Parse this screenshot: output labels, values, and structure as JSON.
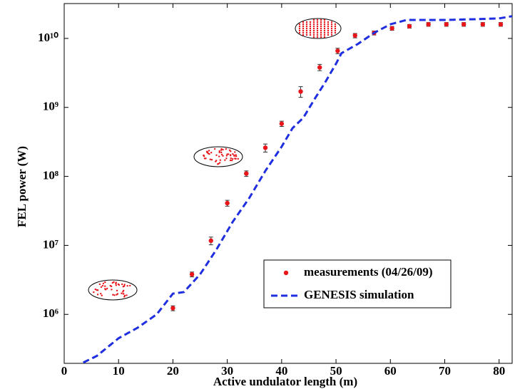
{
  "chart_data": {
    "type": "scatter",
    "xlabel": "Active undulator length (m)",
    "ylabel": "FEL power (W)",
    "xlim": [
      0,
      82.4
    ],
    "ylim": [
      195000,
      32000000000
    ],
    "y_scale": "log",
    "xticks": [
      0,
      10,
      20,
      30,
      40,
      50,
      60,
      70,
      80
    ],
    "yticks": [
      {
        "value": 1000000,
        "label": "10⁶"
      },
      {
        "value": 10000000,
        "label": "10⁷"
      },
      {
        "value": 100000000,
        "label": "10⁸"
      },
      {
        "value": 1000000000,
        "label": "10⁹"
      },
      {
        "value": 10000000000,
        "label": "10¹⁰"
      }
    ],
    "legend": "lower right",
    "series": [
      {
        "name": "measurements (04/26/09)",
        "type": "scatter",
        "color": "#e8161b",
        "x": [
          20,
          23.5,
          27,
          30,
          33.5,
          37,
          40,
          43.5,
          47,
          50.3,
          53.5,
          57,
          60.3,
          63.5,
          67,
          70.3,
          73.5,
          77,
          80.3
        ],
        "values": [
          1230000,
          3800000,
          11700000,
          41000000,
          110000000,
          260000000,
          580000000,
          1700000000,
          3800000000,
          6600000000,
          11000000000,
          12000000000,
          14000000000,
          15000000000,
          16000000000,
          16000000000,
          16000000000,
          16000000000,
          16000000000
        ],
        "errors": [
          100000,
          300000,
          1500000,
          4000000,
          10000000,
          35000000,
          50000000,
          300000000,
          400000000,
          600000000,
          800000000,
          800000000,
          900000000,
          900000000,
          1000000000,
          1000000000,
          1000000000,
          1000000000,
          1000000000
        ]
      },
      {
        "name": "GENESIS simulation",
        "type": "line",
        "color": "#1f2fe0",
        "x": [
          3.5,
          6,
          10,
          13.5,
          17,
          20,
          22,
          25,
          28,
          31,
          34,
          37,
          40,
          42,
          44,
          46,
          48,
          50,
          51,
          54,
          57,
          60,
          63,
          70,
          76,
          80,
          82.4
        ],
        "values": [
          200000,
          250000,
          450000,
          640000,
          1000000,
          2000000,
          2100000,
          3800000,
          8700000,
          22000000,
          48000000,
          120000000,
          270000000,
          500000000,
          710000000,
          1300000000,
          2300000000,
          4300000000,
          6100000000,
          8300000000,
          12000000000,
          16000000000,
          18500000000,
          18500000000,
          19000000000,
          19500000000,
          21000000000
        ]
      }
    ]
  }
}
